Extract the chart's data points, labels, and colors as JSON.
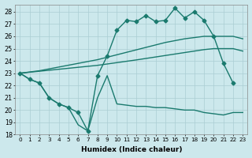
{
  "xlabel": "Humidex (Indice chaleur)",
  "bg_color": "#cce8ec",
  "grid_color": "#aacdd3",
  "line_color": "#1a7a6e",
  "xlim": [
    -0.5,
    23.5
  ],
  "ylim": [
    18,
    28.6
  ],
  "xticks": [
    0,
    1,
    2,
    3,
    4,
    5,
    6,
    7,
    8,
    9,
    10,
    11,
    12,
    13,
    14,
    15,
    16,
    17,
    18,
    19,
    20,
    21,
    22,
    23
  ],
  "yticks": [
    18,
    19,
    20,
    21,
    22,
    23,
    24,
    25,
    26,
    27,
    28
  ],
  "series": [
    {
      "x": [
        0,
        1,
        2,
        3,
        4,
        5,
        6,
        7,
        8,
        9,
        10,
        11,
        12,
        13,
        14,
        15,
        16,
        17,
        18,
        19,
        20,
        21,
        22,
        23
      ],
      "y": [
        23.0,
        22.5,
        22.2,
        21.0,
        20.5,
        20.2,
        19.8,
        18.3,
        22.8,
        24.4,
        26.5,
        27.3,
        27.2,
        27.7,
        27.2,
        27.3,
        28.3,
        27.5,
        28.0,
        27.3,
        26.0,
        23.8,
        22.2,
        null
      ],
      "has_null": true,
      "marker": "D",
      "markersize": 2.5,
      "linewidth": 1.0
    },
    {
      "x": [
        0,
        1,
        2,
        3,
        4,
        5,
        6,
        7,
        8,
        9,
        10,
        11,
        12,
        13,
        14,
        15,
        16,
        17,
        18,
        19,
        20,
        21,
        22,
        23
      ],
      "y": [
        23.0,
        23.1,
        23.2,
        23.35,
        23.5,
        23.65,
        23.8,
        23.95,
        24.1,
        24.3,
        24.5,
        24.7,
        24.9,
        25.1,
        25.3,
        25.5,
        25.65,
        25.8,
        25.9,
        26.0,
        26.0,
        26.0,
        26.0,
        25.8
      ],
      "has_null": false,
      "marker": "None",
      "markersize": 0,
      "linewidth": 1.0
    },
    {
      "x": [
        0,
        1,
        2,
        3,
        4,
        5,
        6,
        7,
        8,
        9,
        10,
        11,
        12,
        13,
        14,
        15,
        16,
        17,
        18,
        19,
        20,
        21,
        22,
        23
      ],
      "y": [
        23.0,
        23.08,
        23.16,
        23.24,
        23.32,
        23.4,
        23.48,
        23.56,
        23.64,
        23.75,
        23.86,
        23.97,
        24.08,
        24.2,
        24.32,
        24.44,
        24.56,
        24.68,
        24.8,
        24.92,
        25.0,
        25.0,
        25.0,
        24.8
      ],
      "has_null": false,
      "marker": "None",
      "markersize": 0,
      "linewidth": 1.0
    },
    {
      "x": [
        0,
        1,
        2,
        3,
        4,
        5,
        6,
        7,
        8,
        9,
        10,
        11,
        12,
        13,
        14,
        15,
        16,
        17,
        18,
        19,
        20,
        21,
        22,
        23
      ],
      "y": [
        23.0,
        22.5,
        22.2,
        21.0,
        20.5,
        20.2,
        18.8,
        18.3,
        21.0,
        22.8,
        20.5,
        20.4,
        20.3,
        20.3,
        20.2,
        20.2,
        20.1,
        20.0,
        20.0,
        19.8,
        19.7,
        19.6,
        19.8,
        19.8
      ],
      "has_null": false,
      "marker": "None",
      "markersize": 0,
      "linewidth": 1.0
    }
  ]
}
